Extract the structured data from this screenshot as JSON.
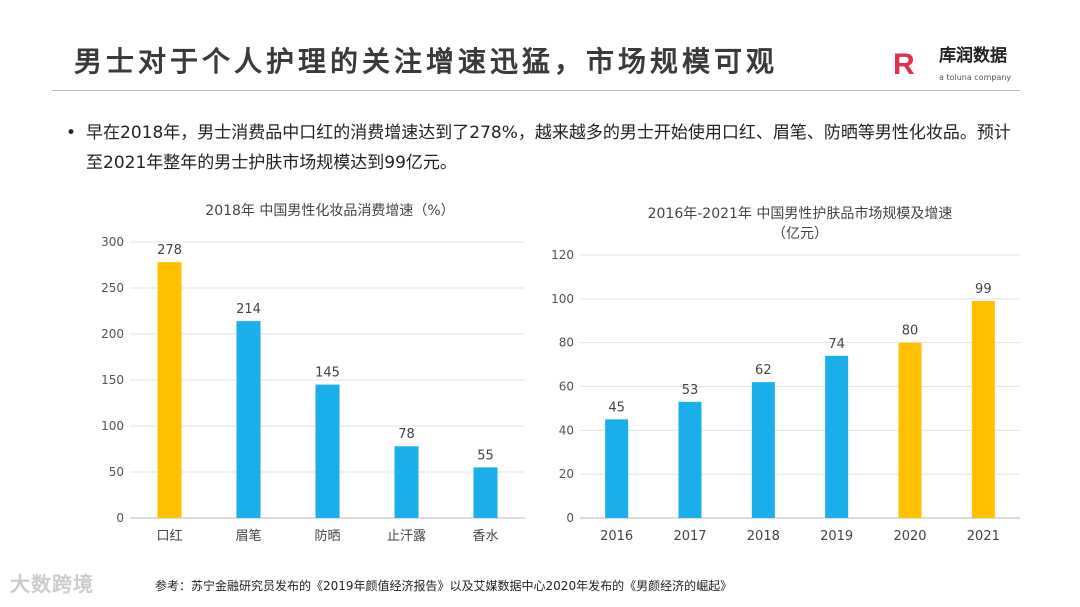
{
  "title": "男士对于个人护理的关注增速迅猛，市场规模可观",
  "logo": {
    "mark": "R",
    "name": "库润数据",
    "tagline": "a toluna company"
  },
  "bullet": "早在2018年，男士消费品中口红的消费增速达到了278%，越来越多的男士开始使用口红、眉笔、防晒等男性化妆品。预计至2021年整年的男士护肤市场规模达到99亿元。",
  "footnote": "参考：苏宁金融研究员发布的《2019年颜值经济报告》以及艾媒数据中心2020年发布的《男颜经济的崛起》",
  "watermark": "大数跨境",
  "colors": {
    "blue": "#1AAEEB",
    "yellow": "#FFC000"
  },
  "chart_data": [
    {
      "type": "bar",
      "title": "2018年  中国男性化妆品消费增速（%）",
      "categories": [
        "口红",
        "眉笔",
        "防晒",
        "止汗露",
        "香水"
      ],
      "values": [
        278,
        214,
        145,
        78,
        55
      ],
      "colors": [
        "yellow",
        "blue",
        "blue",
        "blue",
        "blue"
      ],
      "ylim": [
        0,
        300
      ],
      "yticks": [
        0,
        50,
        100,
        150,
        200,
        250,
        300
      ],
      "grid": true
    },
    {
      "type": "bar",
      "title": "2016年-2021年  中国男性护肤品市场规模及增速",
      "subtitle": "（亿元）",
      "categories": [
        "2016",
        "2017",
        "2018",
        "2019",
        "2020",
        "2021"
      ],
      "values": [
        45,
        53,
        62,
        74,
        80,
        99
      ],
      "colors": [
        "blue",
        "blue",
        "blue",
        "blue",
        "yellow",
        "yellow"
      ],
      "ylim": [
        0,
        120
      ],
      "yticks": [
        0,
        20,
        40,
        60,
        80,
        100,
        120
      ],
      "grid": true
    }
  ]
}
